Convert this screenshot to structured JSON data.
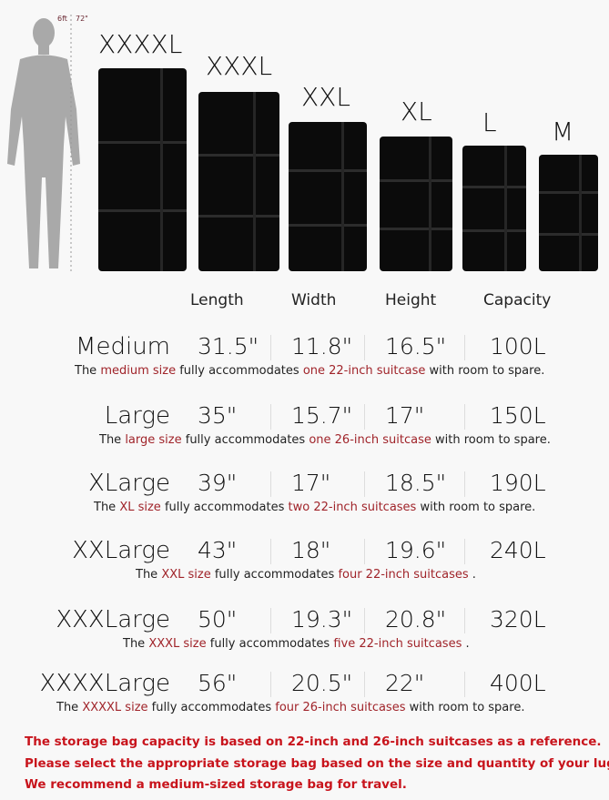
{
  "figure": {
    "height_ft": "6ft",
    "height_in": "72\""
  },
  "bags": [
    {
      "label": "XXXXL"
    },
    {
      "label": "XXXL"
    },
    {
      "label": "XXL"
    },
    {
      "label": "XL"
    },
    {
      "label": "L"
    },
    {
      "label": "M"
    }
  ],
  "columns": [
    "Length",
    "Width",
    "Height",
    "Capacity"
  ],
  "rows": [
    {
      "name": "Medium",
      "length": "31.5\"",
      "width": "11.8\"",
      "height": "16.5\"",
      "capacity": "100L",
      "cap": [
        "The ",
        "medium size",
        " fully accommodates ",
        "one 22-inch suitcase",
        " with room to spare."
      ]
    },
    {
      "name": "Large",
      "length": "35\"",
      "width": "15.7\"",
      "height": "17\"",
      "capacity": "150L",
      "cap": [
        "The ",
        "large size",
        " fully accommodates ",
        "one 26-inch suitcase",
        " with room to spare."
      ]
    },
    {
      "name": "XLarge",
      "length": "39\"",
      "width": "17\"",
      "height": "18.5\"",
      "capacity": "190L",
      "cap": [
        "The ",
        "XL size",
        " fully accommodates ",
        "two 22-inch suitcases",
        " with room to spare."
      ]
    },
    {
      "name": "XXLarge",
      "length": "43\"",
      "width": "18\"",
      "height": "19.6\"",
      "capacity": "240L",
      "cap": [
        "The ",
        "XXL size",
        " fully accommodates ",
        "four 22-inch suitcases",
        " ."
      ]
    },
    {
      "name": "XXXLarge",
      "length": "50\"",
      "width": "19.3\"",
      "height": "20.8\"",
      "capacity": "320L",
      "cap": [
        "The ",
        "XXXL size",
        " fully accommodates ",
        "five 22-inch suitcases",
        " ."
      ]
    },
    {
      "name": "XXXXLarge",
      "length": "56\"",
      "width": "20.5\"",
      "height": "22\"",
      "capacity": "400L",
      "cap": [
        "The ",
        "XXXXL size",
        " fully accommodates ",
        "four 26-inch suitcases",
        " with room to spare."
      ]
    }
  ],
  "notes": [
    "The storage bag capacity is based on 22-inch and 26-inch suitcases as a reference.",
    "Please select the appropriate storage bag based on the size and quantity of your luggage.",
    "We recommend a medium-sized storage bag for travel."
  ],
  "colors": {
    "highlight": "#a0242a",
    "note": "#c8141c",
    "bag": "#0b0b0b",
    "figure": "#a9a9a9"
  }
}
